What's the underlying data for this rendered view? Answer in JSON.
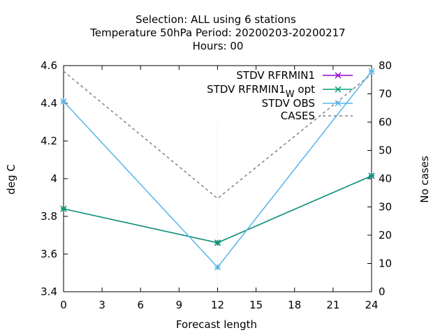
{
  "chart_data": {
    "type": "line",
    "title_lines": [
      "Selection: ALL using     6 stations",
      "Temperature 50hPa   Period: 20200203-20200217",
      "Hours:  00"
    ],
    "xlabel": "Forecast length",
    "ylabel": "deg C",
    "y2label": "No cases",
    "xlim": [
      0,
      24
    ],
    "ylim": [
      3.4,
      4.6
    ],
    "y2lim": [
      0,
      80
    ],
    "xticks": [
      "0",
      "3",
      "6",
      "9",
      "12",
      "15",
      "18",
      "21",
      "24"
    ],
    "yticks": [
      "3.4",
      "3.6",
      "3.8",
      "4",
      "4.2",
      "4.4",
      "4.6"
    ],
    "y2ticks": [
      "0",
      "10",
      "20",
      "30",
      "40",
      "50",
      "60",
      "70",
      "80"
    ],
    "x": [
      0,
      12,
      24
    ],
    "series": [
      {
        "name": "STDV RFRMIN1",
        "color": "#9400d3",
        "marker": "x",
        "axis": "y",
        "values": [
          3.84,
          3.66,
          4.015
        ]
      },
      {
        "name": "STDV RFRMIN1",
        "name_subscript": "W",
        "name_suffix": "opt",
        "color": "#009e73",
        "marker": "x",
        "axis": "y",
        "values": [
          3.84,
          3.66,
          4.015
        ]
      },
      {
        "name": "STDV OBS",
        "color": "#56b4e9",
        "marker": "x",
        "axis": "y",
        "values": [
          4.41,
          3.53,
          4.57
        ]
      },
      {
        "name": "CASES",
        "color": "#808080",
        "dashed": true,
        "axis": "y2",
        "values": [
          78,
          33,
          77
        ]
      }
    ]
  }
}
